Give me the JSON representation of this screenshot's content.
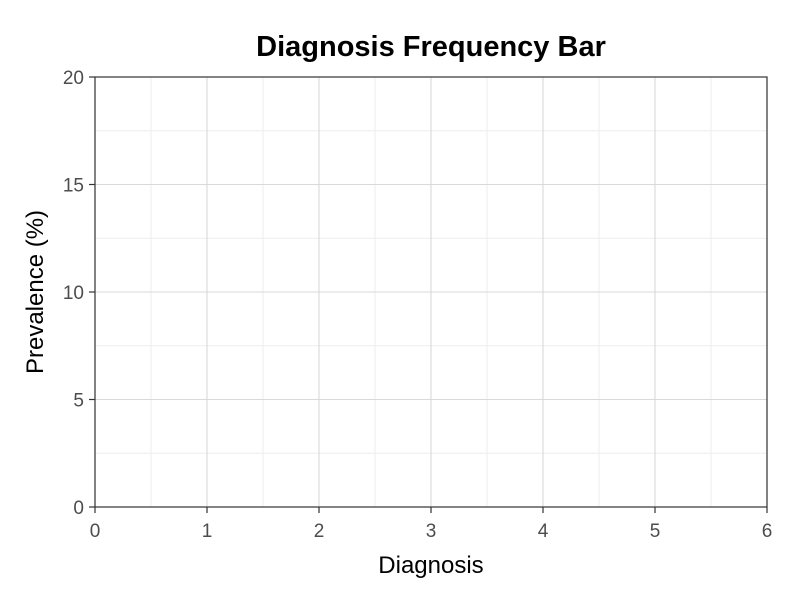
{
  "chart_data": {
    "type": "bar",
    "title": "Diagnosis Frequency Bar",
    "xlabel": "Diagnosis",
    "ylabel": "Prevalence (%)",
    "xlim": [
      0,
      6
    ],
    "ylim": [
      0,
      20
    ],
    "x_ticks": [
      0,
      1,
      2,
      3,
      4,
      5,
      6
    ],
    "y_ticks": [
      0,
      5,
      10,
      15,
      20
    ],
    "x_minor_ticks": [
      0.5,
      1.5,
      2.5,
      3.5,
      4.5,
      5.5
    ],
    "y_minor_ticks": [
      2.5,
      7.5,
      12.5,
      17.5
    ],
    "categories": [],
    "values": [],
    "grid": true,
    "legend": "none",
    "colors": {
      "grid_major": "#d9d9d9",
      "grid_minor": "#ededed",
      "frame": "#333333",
      "tick_text": "#4d4d4d"
    }
  }
}
